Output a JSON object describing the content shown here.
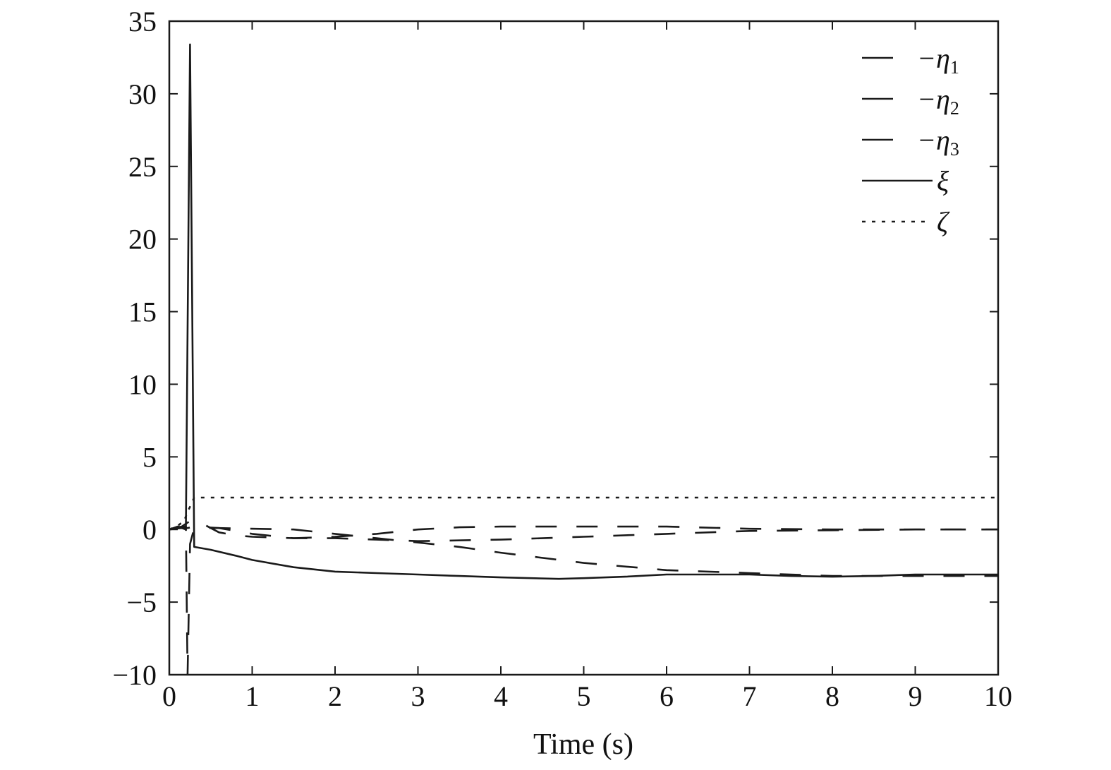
{
  "chart_data": {
    "type": "line",
    "title": "",
    "xlabel": "Time (s)",
    "ylabel": "",
    "xlim": [
      0,
      10
    ],
    "ylim": [
      -10,
      35
    ],
    "xticks": [
      0,
      1,
      2,
      3,
      4,
      5,
      6,
      7,
      8,
      9,
      10
    ],
    "yticks": [
      -10,
      -5,
      0,
      5,
      10,
      15,
      20,
      25,
      30,
      35
    ],
    "xtick_labels": [
      "0",
      "1",
      "2",
      "3",
      "4",
      "5",
      "6",
      "7",
      "8",
      "9",
      "10"
    ],
    "ytick_labels": [
      "−10",
      "−5",
      "0",
      "5",
      "10",
      "15",
      "20",
      "25",
      "30",
      "35"
    ],
    "grid": false,
    "legend_position": "top-right",
    "line_color": "#1a1a1a",
    "series": [
      {
        "name": "−η",
        "subscript": "1",
        "style": "dashed",
        "points": [
          [
            0,
            0
          ],
          [
            0.1,
            0.2
          ],
          [
            0.22,
            0.1
          ],
          [
            0.3,
            0.2
          ],
          [
            0.6,
            0.1
          ],
          [
            1.0,
            -0.3
          ],
          [
            1.5,
            -0.6
          ],
          [
            2.0,
            -0.5
          ],
          [
            2.5,
            -0.3
          ],
          [
            3.0,
            0
          ],
          [
            3.5,
            0.15
          ],
          [
            4,
            0.2
          ],
          [
            5,
            0.2
          ],
          [
            6,
            0.2
          ],
          [
            7,
            0.05
          ],
          [
            8,
            0
          ],
          [
            9,
            0
          ],
          [
            10,
            0
          ]
        ]
      },
      {
        "name": "−η",
        "subscript": "2",
        "style": "dashed",
        "points": [
          [
            0,
            0
          ],
          [
            0.1,
            0.15
          ],
          [
            0.2,
            0.2
          ],
          [
            0.22,
            -10
          ],
          [
            0.25,
            -1
          ],
          [
            0.3,
            0.1
          ],
          [
            0.6,
            0.1
          ],
          [
            1.5,
            0
          ],
          [
            2.0,
            -0.3
          ],
          [
            2.5,
            -0.6
          ],
          [
            3.0,
            -0.9
          ],
          [
            3.5,
            -1.2
          ],
          [
            4,
            -1.6
          ],
          [
            5,
            -2.3
          ],
          [
            6,
            -2.8
          ],
          [
            7,
            -3.0
          ],
          [
            8,
            -3.2
          ],
          [
            9,
            -3.2
          ],
          [
            10,
            -3.2
          ]
        ]
      },
      {
        "name": "−η",
        "subscript": "3",
        "style": "dashed",
        "points": [
          [
            0,
            0
          ],
          [
            0.15,
            0.2
          ],
          [
            0.28,
            0.7
          ],
          [
            0.4,
            0.4
          ],
          [
            0.6,
            -0.2
          ],
          [
            0.8,
            -0.4
          ],
          [
            1.0,
            -0.5
          ],
          [
            1.5,
            -0.6
          ],
          [
            2.0,
            -0.6
          ],
          [
            2.5,
            -0.7
          ],
          [
            3.0,
            -0.8
          ],
          [
            4,
            -0.7
          ],
          [
            5,
            -0.5
          ],
          [
            6,
            -0.3
          ],
          [
            7,
            -0.1
          ],
          [
            8,
            -0.05
          ],
          [
            9,
            0
          ],
          [
            10,
            0
          ]
        ]
      },
      {
        "name": "ξ",
        "subscript": "",
        "style": "solid",
        "points": [
          [
            0,
            0
          ],
          [
            0.15,
            0.1
          ],
          [
            0.2,
            0
          ],
          [
            0.25,
            33.4
          ],
          [
            0.3,
            -1.2
          ],
          [
            0.5,
            -1.4
          ],
          [
            0.8,
            -1.8
          ],
          [
            1.0,
            -2.1
          ],
          [
            1.5,
            -2.6
          ],
          [
            2.0,
            -2.9
          ],
          [
            2.5,
            -3.0
          ],
          [
            3.0,
            -3.1
          ],
          [
            3.5,
            -3.2
          ],
          [
            4,
            -3.3
          ],
          [
            4.7,
            -3.4
          ],
          [
            5,
            -3.35
          ],
          [
            5.5,
            -3.25
          ],
          [
            6,
            -3.1
          ],
          [
            7,
            -3.1
          ],
          [
            7.5,
            -3.2
          ],
          [
            8,
            -3.25
          ],
          [
            8.5,
            -3.2
          ],
          [
            9,
            -3.1
          ],
          [
            10,
            -3.1
          ]
        ]
      },
      {
        "name": "ζ",
        "subscript": "",
        "style": "dotted",
        "points": [
          [
            0,
            0
          ],
          [
            0.1,
            0.25
          ],
          [
            0.18,
            0.6
          ],
          [
            0.22,
            1.2
          ],
          [
            0.3,
            2.2
          ],
          [
            1,
            2.2
          ],
          [
            10,
            2.2
          ]
        ]
      }
    ]
  }
}
